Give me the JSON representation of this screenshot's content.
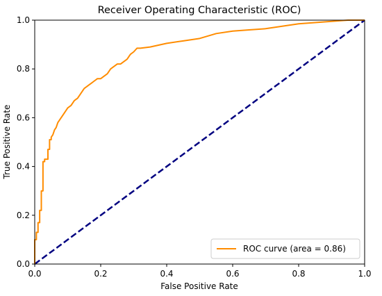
{
  "chart_data": {
    "type": "line",
    "title": "Receiver Operating Characteristic (ROC)",
    "xlabel": "False Positive Rate",
    "ylabel": "True Positive Rate",
    "xlim": [
      0.0,
      1.0
    ],
    "ylim": [
      0.0,
      1.0
    ],
    "xticks": [
      "0.0",
      "0.2",
      "0.4",
      "0.6",
      "0.8",
      "1.0"
    ],
    "yticks": [
      "0.0",
      "0.2",
      "0.4",
      "0.6",
      "0.8",
      "1.0"
    ],
    "grid": false,
    "legend_position": "lower-right",
    "series": [
      {
        "name": "ROC curve (area = 0.86)",
        "color": "#ff8c00",
        "style": "solid",
        "x": [
          0.0,
          0.0,
          0.005,
          0.005,
          0.01,
          0.01,
          0.015,
          0.015,
          0.02,
          0.02,
          0.025,
          0.025,
          0.03,
          0.03,
          0.04,
          0.04,
          0.045,
          0.045,
          0.05,
          0.05,
          0.055,
          0.06,
          0.065,
          0.07,
          0.075,
          0.08,
          0.085,
          0.09,
          0.1,
          0.11,
          0.12,
          0.13,
          0.14,
          0.15,
          0.16,
          0.17,
          0.18,
          0.19,
          0.2,
          0.21,
          0.22,
          0.23,
          0.24,
          0.25,
          0.26,
          0.27,
          0.28,
          0.29,
          0.3,
          0.31,
          0.32,
          0.35,
          0.4,
          0.45,
          0.5,
          0.55,
          0.6,
          0.65,
          0.7,
          0.75,
          0.8,
          0.85,
          0.9,
          0.95,
          1.0
        ],
        "y": [
          0.0,
          0.1,
          0.1,
          0.13,
          0.13,
          0.17,
          0.17,
          0.22,
          0.22,
          0.3,
          0.3,
          0.42,
          0.42,
          0.43,
          0.43,
          0.47,
          0.47,
          0.51,
          0.51,
          0.52,
          0.53,
          0.55,
          0.56,
          0.58,
          0.59,
          0.6,
          0.61,
          0.62,
          0.64,
          0.65,
          0.67,
          0.68,
          0.7,
          0.72,
          0.73,
          0.74,
          0.75,
          0.76,
          0.76,
          0.77,
          0.78,
          0.8,
          0.81,
          0.82,
          0.82,
          0.83,
          0.84,
          0.86,
          0.87,
          0.885,
          0.885,
          0.89,
          0.905,
          0.915,
          0.925,
          0.945,
          0.955,
          0.96,
          0.965,
          0.975,
          0.985,
          0.99,
          0.995,
          1.0,
          1.0
        ]
      },
      {
        "name": "",
        "color": "#000080",
        "style": "dashed",
        "x": [
          0.0,
          1.0
        ],
        "y": [
          0.0,
          1.0
        ]
      }
    ]
  }
}
